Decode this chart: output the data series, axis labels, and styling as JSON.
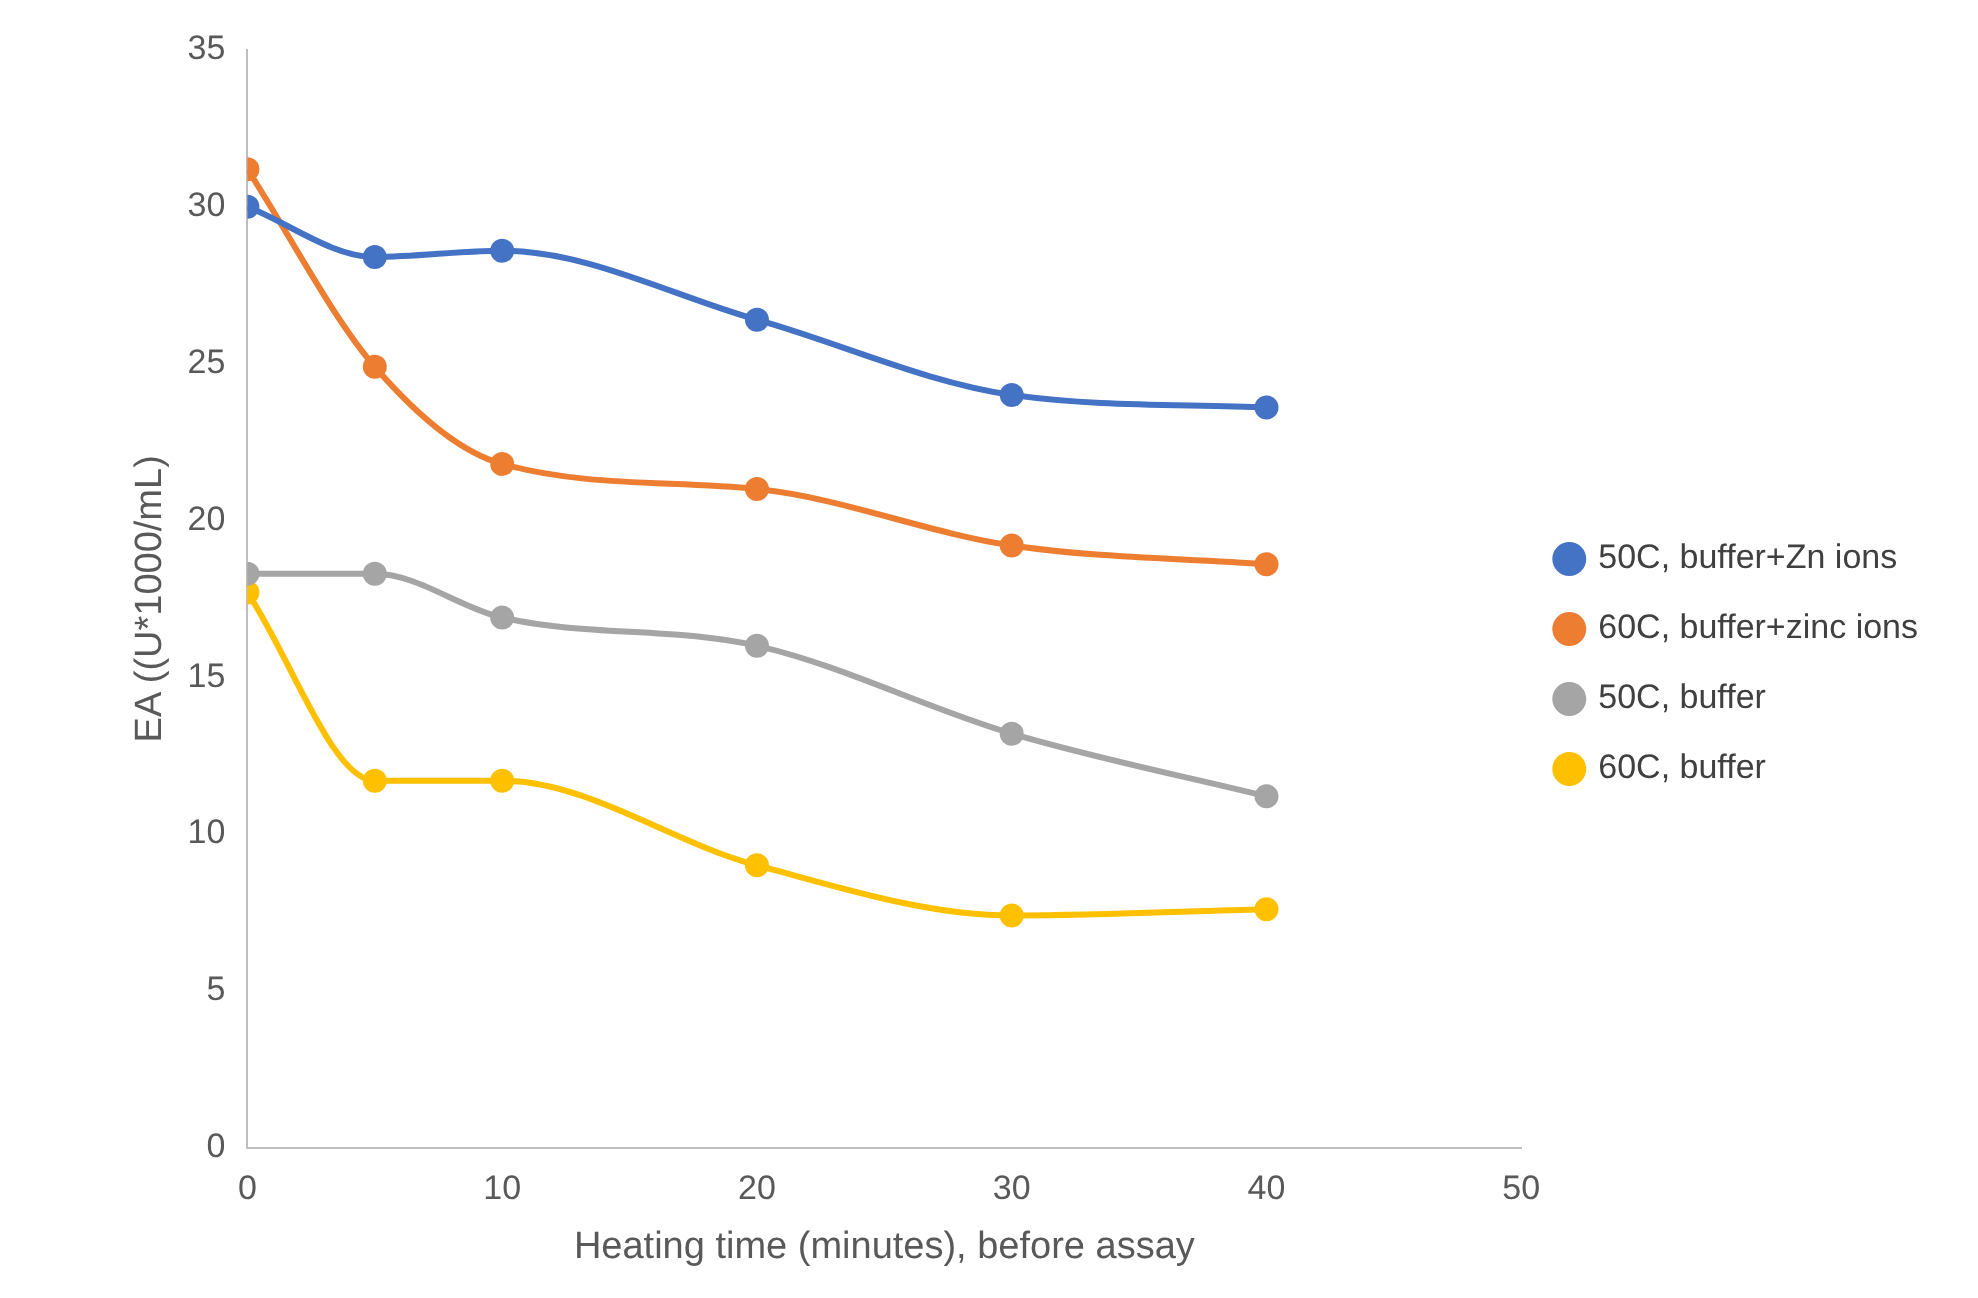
{
  "chart_data": {
    "type": "line",
    "xlabel": "Heating time (minutes), before assay",
    "ylabel": "EA ((U*1000/mL)",
    "x": [
      0,
      5,
      10,
      20,
      30,
      40
    ],
    "series": [
      {
        "name": "50C, buffer+Zn ions",
        "color": "#4472c4",
        "values": [
          30.0,
          28.4,
          28.6,
          26.4,
          24.0,
          23.6
        ]
      },
      {
        "name": "60C, buffer+zinc ions",
        "color": "#ed7d31",
        "values": [
          31.2,
          24.9,
          21.8,
          21.0,
          19.2,
          18.6
        ]
      },
      {
        "name": "50C, buffer",
        "color": "#a5a5a5",
        "values": [
          18.3,
          18.3,
          16.9,
          16.0,
          13.2,
          11.2
        ]
      },
      {
        "name": "60C, buffer",
        "color": "#ffc000",
        "values": [
          17.7,
          11.7,
          11.7,
          9.0,
          7.4,
          7.6
        ]
      }
    ],
    "xlim": [
      0,
      50
    ],
    "xticks": [
      0,
      10,
      20,
      30,
      40,
      50
    ],
    "ylim": [
      0,
      35
    ],
    "yticks": [
      0,
      5,
      10,
      15,
      20,
      25,
      30,
      35
    ],
    "grid": false,
    "legend": "right",
    "marker": "circle",
    "line_style": "solid"
  }
}
